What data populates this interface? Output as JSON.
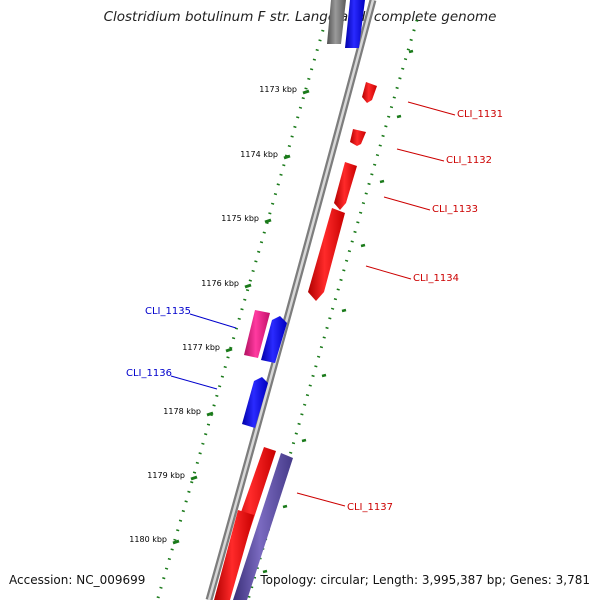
{
  "title": "Clostridium botulinum F str. Langeland, complete genome",
  "footer": {
    "accession": "Accession: NC_009699",
    "summary": "Topology: circular; Length: 3,995,387 bp; Genes: 3,781"
  },
  "scale_labels": [
    "1173 kbp",
    "1174 kbp",
    "1175 kbp",
    "1176 kbp",
    "1177 kbp",
    "1178 kbp",
    "1179 kbp",
    "1180 kbp"
  ],
  "genes": [
    {
      "id": "CLI_1131",
      "strand": "forward",
      "color": "#ff0000",
      "labeled": true
    },
    {
      "id": "CLI_1132",
      "strand": "forward",
      "color": "#ff0000",
      "labeled": true
    },
    {
      "id": "CLI_1133",
      "strand": "forward",
      "color": "#ff0000",
      "labeled": true
    },
    {
      "id": "CLI_1134",
      "strand": "forward",
      "color": "#ff0000",
      "labeled": true
    },
    {
      "id": "CLI_1135",
      "strand": "reverse",
      "color": "#e8177f",
      "labeled": true
    },
    {
      "id": "CLI_1136",
      "strand": "reverse",
      "color": "#0000ff",
      "labeled": true
    },
    {
      "id": "CLI_1137",
      "strand": "forward",
      "color": "#ff0000",
      "labeled": true
    }
  ],
  "colors": {
    "forward_label": "#cc0000",
    "reverse_label": "#0000cc",
    "scale_ticks": "#1a7a1a",
    "backbone": "#888888",
    "cds_forward": "#ff0000",
    "cds_reverse": "#0000ff",
    "rna": "#e8177f",
    "other": "#5a4a9a",
    "gray_feature": "#707070"
  }
}
